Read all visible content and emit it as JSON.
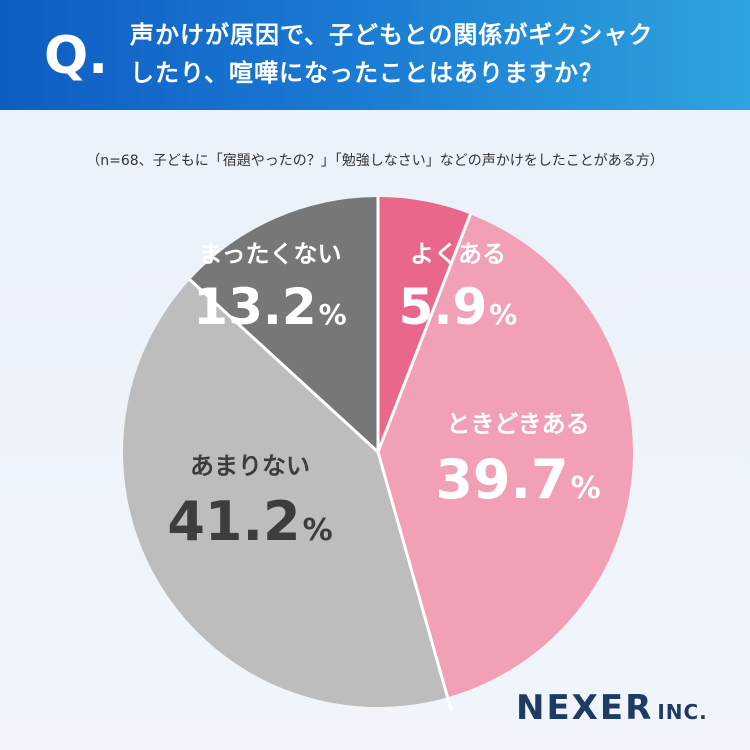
{
  "header": {
    "q_mark": "Q.",
    "question_line1": "声かけが原因で、子どもとの関係がギクシャク",
    "question_line2": "したり、喧嘩になったことはありますか？"
  },
  "note": "（n=68、子どもに「宿題やったの？」「勉強しなさい」などの声かけをしたことがある方）",
  "logo": {
    "main": "NEXER",
    "suffix": "INC."
  },
  "colors": {
    "header_start": "#0f5dc2",
    "header_end": "#2fa3dd",
    "often": "#e8678b",
    "sometimes": "#f2a0b6",
    "rarely": "#bdbdbd",
    "never": "#777777",
    "logo": "#1e3b66"
  },
  "chart_data": {
    "type": "pie",
    "start_angle_deg": 0,
    "direction": "clockwise",
    "slices": [
      {
        "label": "よくある",
        "value": 5.9,
        "display": "5.9",
        "unit": "%"
      },
      {
        "label": "ときどきある",
        "value": 39.7,
        "display": "39.7",
        "unit": "%"
      },
      {
        "label": "あまりない",
        "value": 41.2,
        "display": "41.2",
        "unit": "%"
      },
      {
        "label": "まったくない",
        "value": 13.2,
        "display": "13.2",
        "unit": "%"
      }
    ]
  }
}
